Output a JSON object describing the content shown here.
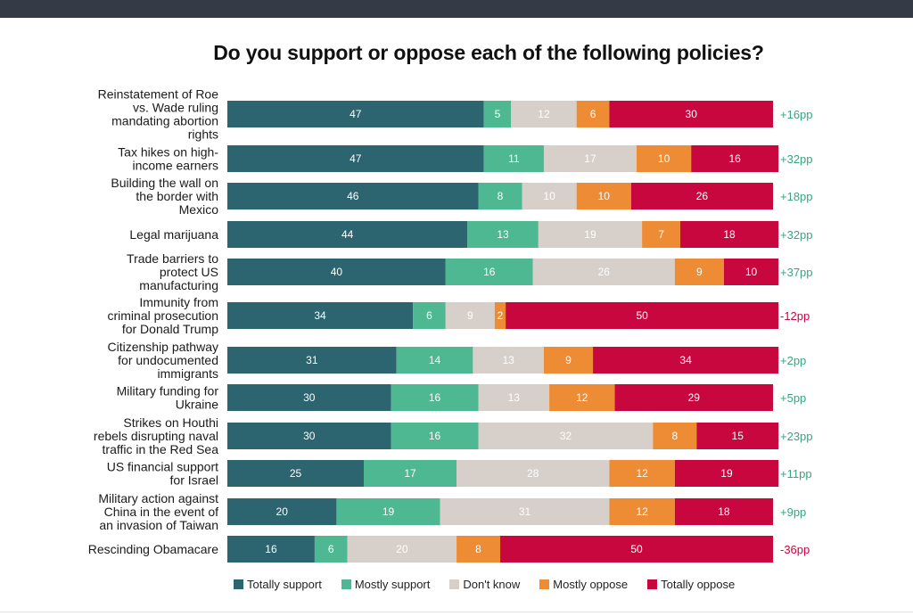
{
  "title": "Do you support or oppose each of the following policies?",
  "chart_data": {
    "type": "bar",
    "orientation": "horizontal-stacked-100",
    "title": "Do you support or oppose each of the following policies?",
    "categories": [
      [
        "Reinstatement of Roe",
        "vs. Wade ruling",
        "mandating abortion",
        "rights"
      ],
      [
        "Tax hikes on high-",
        "income earners"
      ],
      [
        "Building the wall on",
        "the border with",
        "Mexico"
      ],
      [
        "Legal marijuana"
      ],
      [
        "Trade barriers to",
        "protect US",
        "manufacturing"
      ],
      [
        "Immunity from",
        "criminal prosecution",
        "for Donald Trump"
      ],
      [
        "Citizenship pathway",
        "for undocumented",
        "immigrants"
      ],
      [
        "Military funding for",
        "Ukraine"
      ],
      [
        "Strikes on Houthi",
        "rebels disrupting naval",
        "traffic in the Red Sea"
      ],
      [
        "US financial support",
        "for Israel"
      ],
      [
        "Military action against",
        "China in the event of",
        "an invasion of Taiwan"
      ],
      [
        "Rescinding Obamacare"
      ]
    ],
    "series": [
      {
        "name": "Totally support",
        "color": "#2c6470",
        "label_color": "#ffffff",
        "values": [
          47,
          47,
          46,
          44,
          40,
          34,
          31,
          30,
          30,
          25,
          20,
          16
        ]
      },
      {
        "name": "Mostly support",
        "color": "#4db892",
        "label_color": "#ffffff",
        "values": [
          5,
          11,
          8,
          13,
          16,
          6,
          14,
          16,
          16,
          17,
          19,
          6
        ]
      },
      {
        "name": "Don't know",
        "color": "#d6cfca",
        "label_color": "#ffffff",
        "values": [
          12,
          17,
          10,
          19,
          26,
          9,
          13,
          13,
          32,
          28,
          31,
          20
        ]
      },
      {
        "name": "Mostly oppose",
        "color": "#ee8c36",
        "label_color": "#ffffff",
        "values": [
          6,
          10,
          10,
          7,
          9,
          2,
          9,
          12,
          8,
          12,
          12,
          8
        ]
      },
      {
        "name": "Totally oppose",
        "color": "#c8073f",
        "label_color": "#ffffff",
        "values": [
          30,
          16,
          26,
          18,
          10,
          50,
          34,
          29,
          15,
          19,
          18,
          50
        ]
      }
    ],
    "net_labels": [
      "+16pp",
      "+32pp",
      "+18pp",
      "+32pp",
      "+37pp",
      "-12pp",
      "+2pp",
      "+5pp",
      "+23pp",
      "+11pp",
      "+9pp",
      "-36pp"
    ],
    "net_colors": {
      "positive": "#3aa57d",
      "negative": "#c8073f"
    },
    "legend_position": "bottom",
    "xlim": [
      0,
      100
    ]
  }
}
